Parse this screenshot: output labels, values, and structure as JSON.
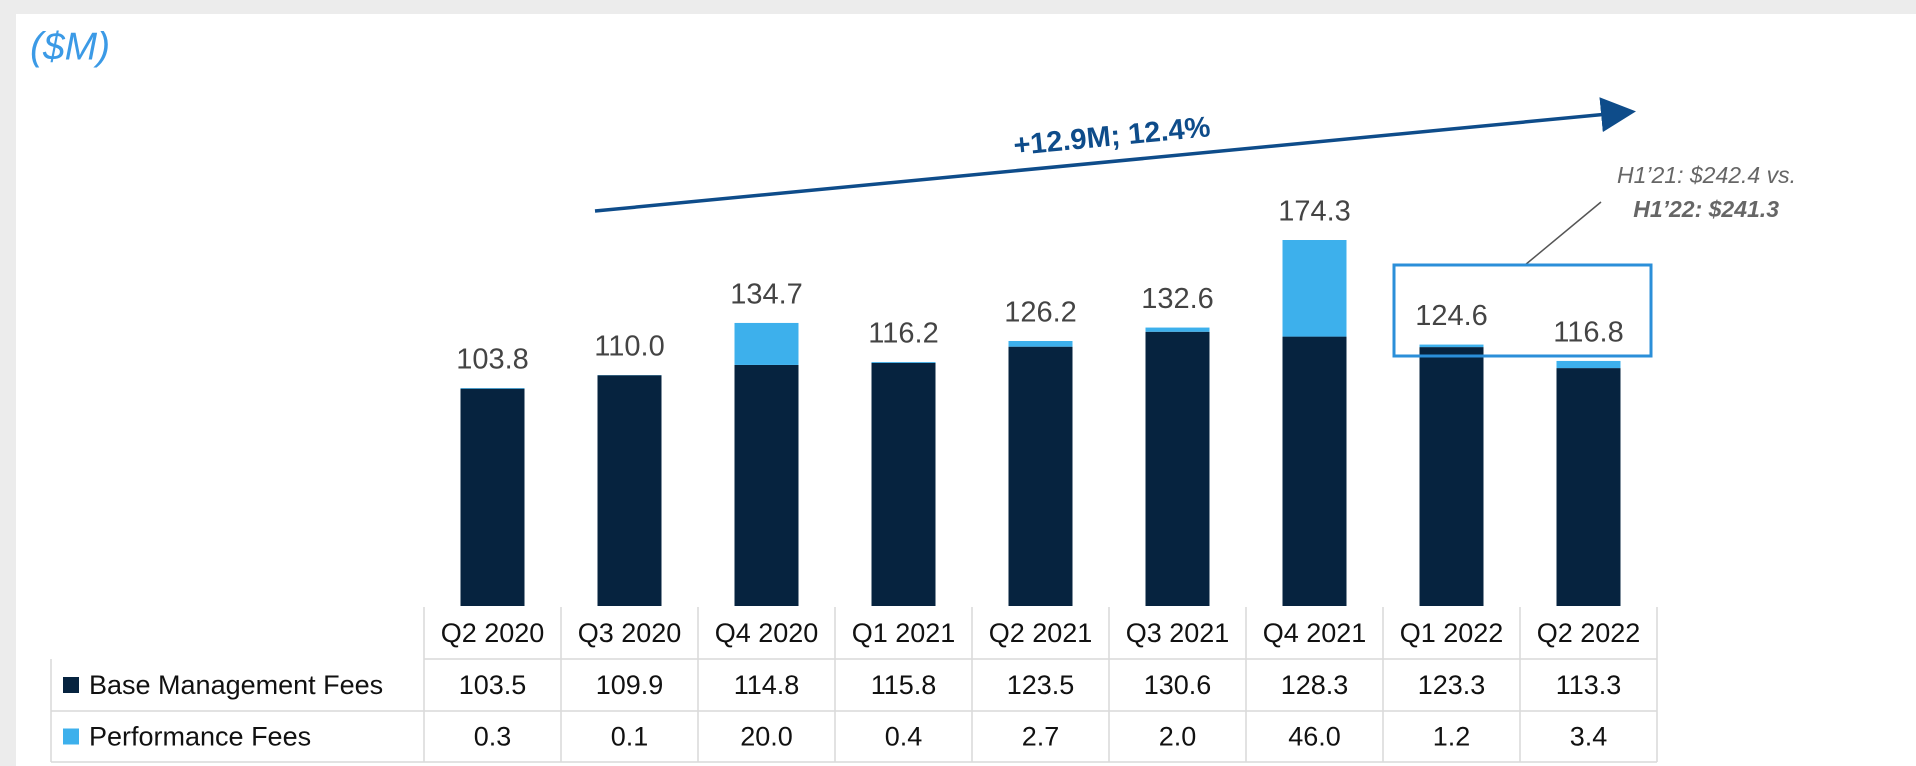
{
  "chart_data": {
    "type": "stacked_bar",
    "unit_label": "($M)",
    "trend_annotation": "+12.9M; 12.4%",
    "callout_line1": "H1’21: $242.4 vs.",
    "callout_line2": "H1’22: $241.3",
    "categories": [
      "Q2 2020",
      "Q3 2020",
      "Q4 2020",
      "Q1 2021",
      "Q2 2021",
      "Q3 2021",
      "Q4 2021",
      "Q1 2022",
      "Q2 2022"
    ],
    "total_labels": [
      "103.8",
      "110.0",
      "134.7",
      "116.2",
      "126.2",
      "132.6",
      "174.3",
      "124.6",
      "116.8"
    ],
    "series": [
      {
        "name": "Base Management Fees",
        "color": "#06233f",
        "values": [
          103.5,
          109.9,
          114.8,
          115.8,
          123.5,
          130.6,
          128.3,
          123.3,
          113.3
        ],
        "value_labels": [
          "103.5",
          "109.9",
          "114.8",
          "115.8",
          "123.5",
          "130.6",
          "128.3",
          "123.3",
          "113.3"
        ]
      },
      {
        "name": "Performance Fees",
        "color": "#3db0ec",
        "values": [
          0.3,
          0.1,
          20.0,
          0.4,
          2.7,
          2.0,
          46.0,
          1.2,
          3.4
        ],
        "value_labels": [
          "0.3",
          "0.1",
          "20.0",
          "0.4",
          "2.7",
          "2.0",
          "46.0",
          "1.2",
          "3.4"
        ]
      }
    ]
  }
}
